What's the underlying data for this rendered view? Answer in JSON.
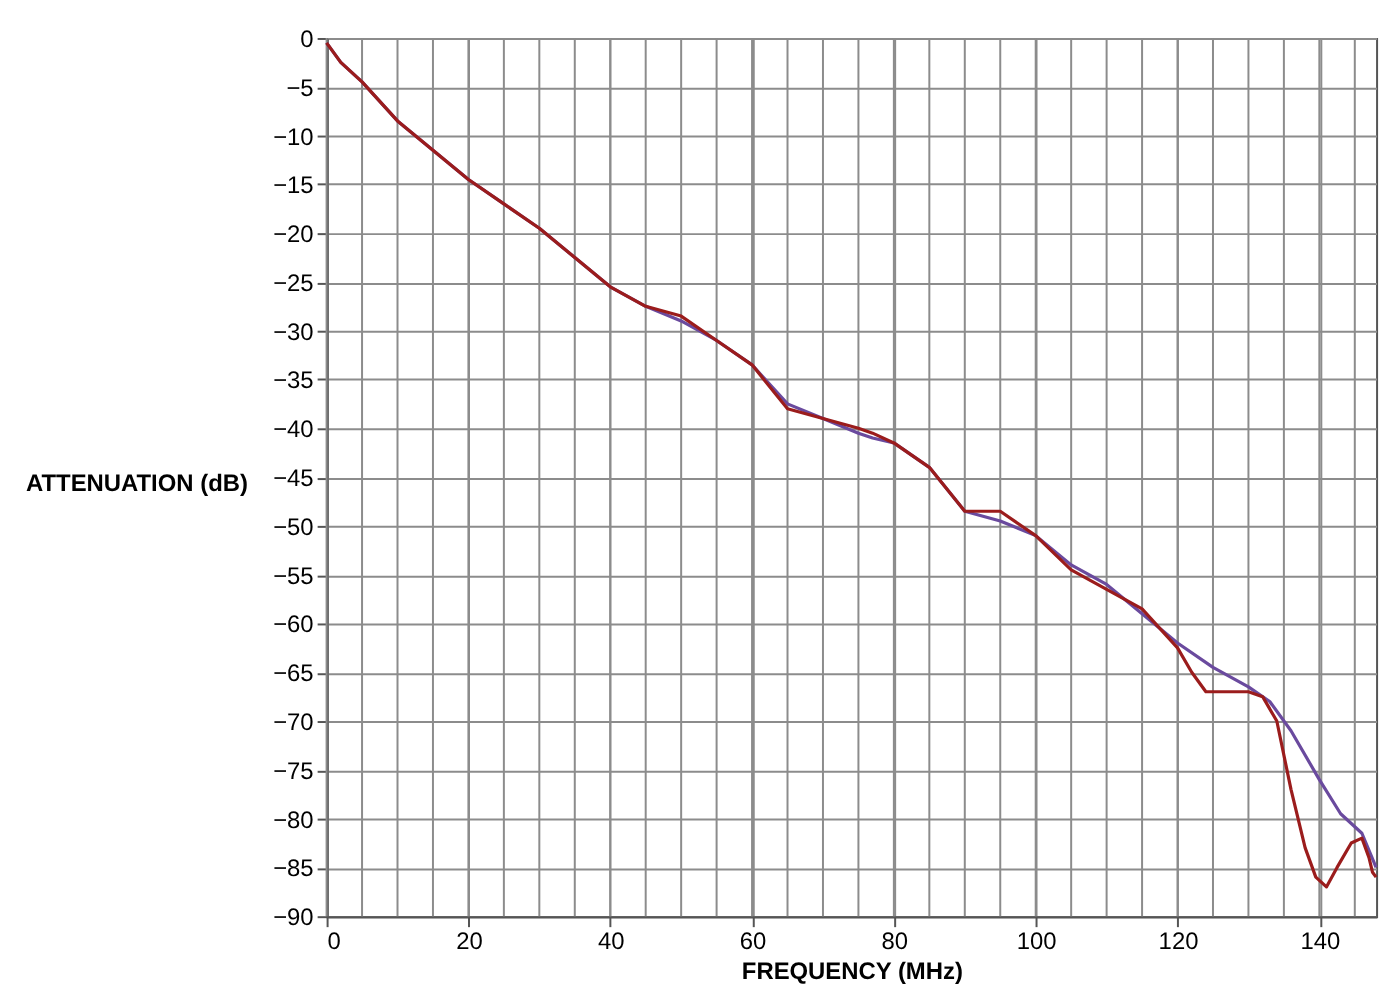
{
  "chart_data": {
    "type": "line",
    "xlabel": "FREQUENCY (MHz)",
    "ylabel": "ATTENUATION (dB)",
    "xlim": [
      0,
      148
    ],
    "ylim": [
      -90,
      0
    ],
    "xticks": [
      0,
      20,
      40,
      60,
      80,
      100,
      120,
      140
    ],
    "yticks": [
      0,
      {
        "value": -5,
        "label": "−5"
      },
      {
        "value": -10,
        "label": "−10"
      },
      {
        "value": -15,
        "label": "−15"
      },
      {
        "value": -20,
        "label": "−20"
      },
      {
        "value": -25,
        "label": "−25"
      },
      {
        "value": -30,
        "label": "−30"
      },
      {
        "value": -35,
        "label": "−35"
      },
      {
        "value": -40,
        "label": "−40"
      },
      {
        "value": -45,
        "label": "−45"
      },
      {
        "value": -50,
        "label": "−50"
      },
      {
        "value": -55,
        "label": "−55"
      },
      {
        "value": -60,
        "label": "−60"
      },
      {
        "value": -65,
        "label": "−65"
      },
      {
        "value": -70,
        "label": "−70"
      },
      {
        "value": -75,
        "label": "−75"
      },
      {
        "value": -80,
        "label": "−80"
      },
      {
        "value": -85,
        "label": "−85"
      },
      {
        "value": -90,
        "label": "−90"
      }
    ],
    "grid": true,
    "legend": false,
    "marker": "none",
    "line_style": "solid",
    "series": [
      {
        "color": "#6a4a9e",
        "x": [
          0,
          2,
          5,
          10,
          15,
          20,
          25,
          30,
          35,
          40,
          45,
          50,
          55,
          60,
          65,
          70,
          75,
          77,
          80,
          85,
          90,
          95,
          100,
          105,
          110,
          115,
          120,
          125,
          130,
          133,
          136,
          140,
          143,
          146,
          148
        ],
        "values": [
          -0.5,
          -2.5,
          -4.5,
          -8.5,
          -11.5,
          -14.5,
          -17,
          -19.5,
          -22.5,
          -25.5,
          -27.5,
          -29,
          -31,
          -33.5,
          -37.5,
          -39,
          -40.5,
          -41,
          -41.5,
          -44,
          -48.5,
          -49.5,
          -51,
          -54,
          -56,
          -59,
          -62,
          -64.5,
          -66.5,
          -68,
          -71,
          -76,
          -79.5,
          -81.5,
          -85
        ]
      },
      {
        "color": "#9b1c1c",
        "x": [
          0,
          2,
          5,
          10,
          15,
          20,
          25,
          30,
          35,
          40,
          45,
          50,
          55,
          60,
          65,
          70,
          75,
          77,
          80,
          85,
          90,
          95,
          100,
          105,
          110,
          115,
          120,
          122,
          124,
          127,
          130,
          132,
          134,
          136,
          138,
          139.5,
          141,
          142.5,
          144.5,
          146,
          147,
          147.5,
          148
        ],
        "values": [
          -0.5,
          -2.5,
          -4.5,
          -8.5,
          -11.5,
          -14.5,
          -17,
          -19.5,
          -22.5,
          -25.5,
          -27.5,
          -28.5,
          -31,
          -33.5,
          -38,
          -39,
          -40,
          -40.5,
          -41.5,
          -44,
          -48.5,
          -48.5,
          -51,
          -54.5,
          -56.5,
          -58.5,
          -62.5,
          -65,
          -67,
          -67,
          -67,
          -67.5,
          -70,
          -77,
          -83,
          -86,
          -87,
          -85,
          -82.5,
          -82,
          -84,
          -85.5,
          -86
        ]
      }
    ]
  }
}
